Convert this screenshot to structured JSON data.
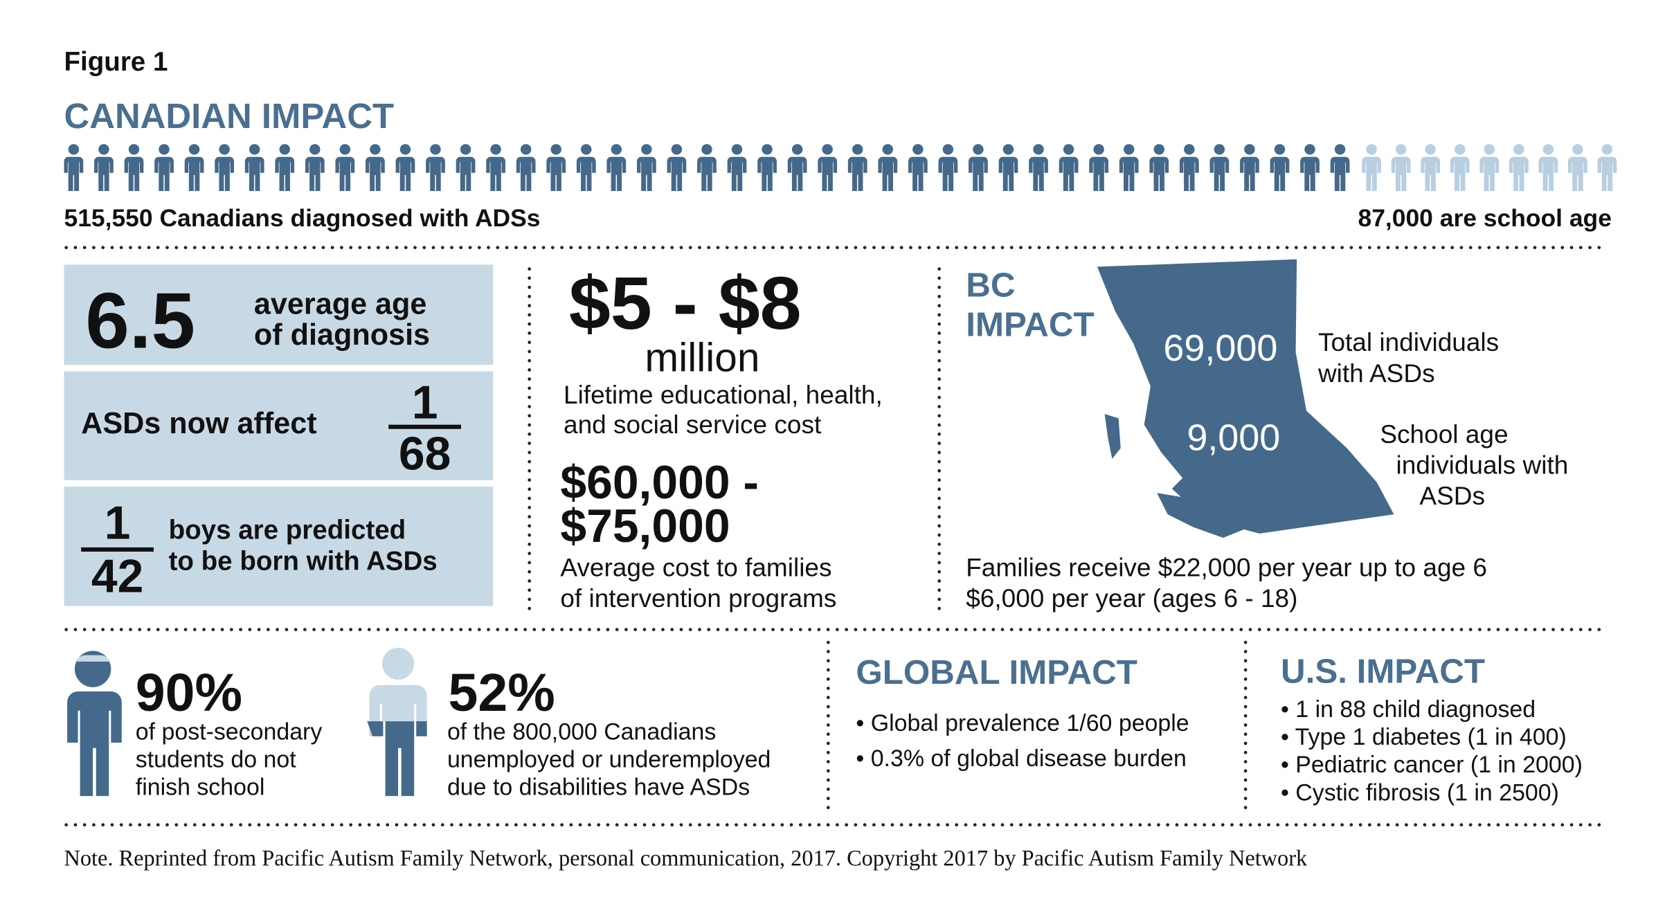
{
  "figure_label": "Figure 1",
  "canadian": {
    "title": "CANADIAN IMPACT",
    "left_caption": "515,550 Canadians diagnosed with ADSs",
    "right_caption": "87,000 are school age"
  },
  "stats": {
    "age": {
      "number": "6.5",
      "lines": [
        "average age",
        "of diagnosis"
      ]
    },
    "affect": {
      "text": "ASDs now affect",
      "numerator": "1",
      "denominator": "68"
    },
    "boys": {
      "numerator": "1",
      "denominator": "42",
      "lines": [
        "boys are predicted",
        "to be born with ASDs"
      ]
    }
  },
  "costs": {
    "lifetime_amount": "$5 - $8",
    "lifetime_unit": "million",
    "lifetime_lines": [
      "Lifetime educational, health,",
      "and social service cost"
    ],
    "family_amount_lines": [
      "$60,000 -",
      "$75,000"
    ],
    "family_lines": [
      "Average cost to families",
      "of intervention programs"
    ]
  },
  "bc": {
    "title_lines": [
      "BC",
      "IMPACT"
    ],
    "total_value": "69,000",
    "total_lines": [
      "Total individuals",
      "with ASDs"
    ],
    "school_value": "9,000",
    "school_lines": [
      "School age",
      "individuals with",
      "ASDs"
    ],
    "funding_lines": [
      "Families receive $22,000 per year up to age 6",
      "$6,000 per year (ages 6 - 18)"
    ]
  },
  "students": {
    "percent": "90%",
    "lines": [
      "of post-secondary",
      "students do not",
      "finish school"
    ]
  },
  "employment": {
    "percent": "52%",
    "lines": [
      "of the 800,000 Canadians",
      "unemployed or underemployed",
      "due to disabilities have ASDs"
    ]
  },
  "global": {
    "title": "GLOBAL IMPACT",
    "items": [
      "• Global prevalence 1/60 people",
      "• 0.3% of global disease burden"
    ]
  },
  "us": {
    "title": "U.S. IMPACT",
    "items": [
      "• 1 in 88 child diagnosed",
      "• Type 1 diabetes (1 in 400)",
      "• Pediatric cancer (1 in 2000)",
      "• Cystic fibrosis (1 in 2500)"
    ]
  },
  "note": "Note. Reprinted from Pacific Autism Family Network, personal communication, 2017. Copyright 2017 by Pacific Autism Family Network"
}
